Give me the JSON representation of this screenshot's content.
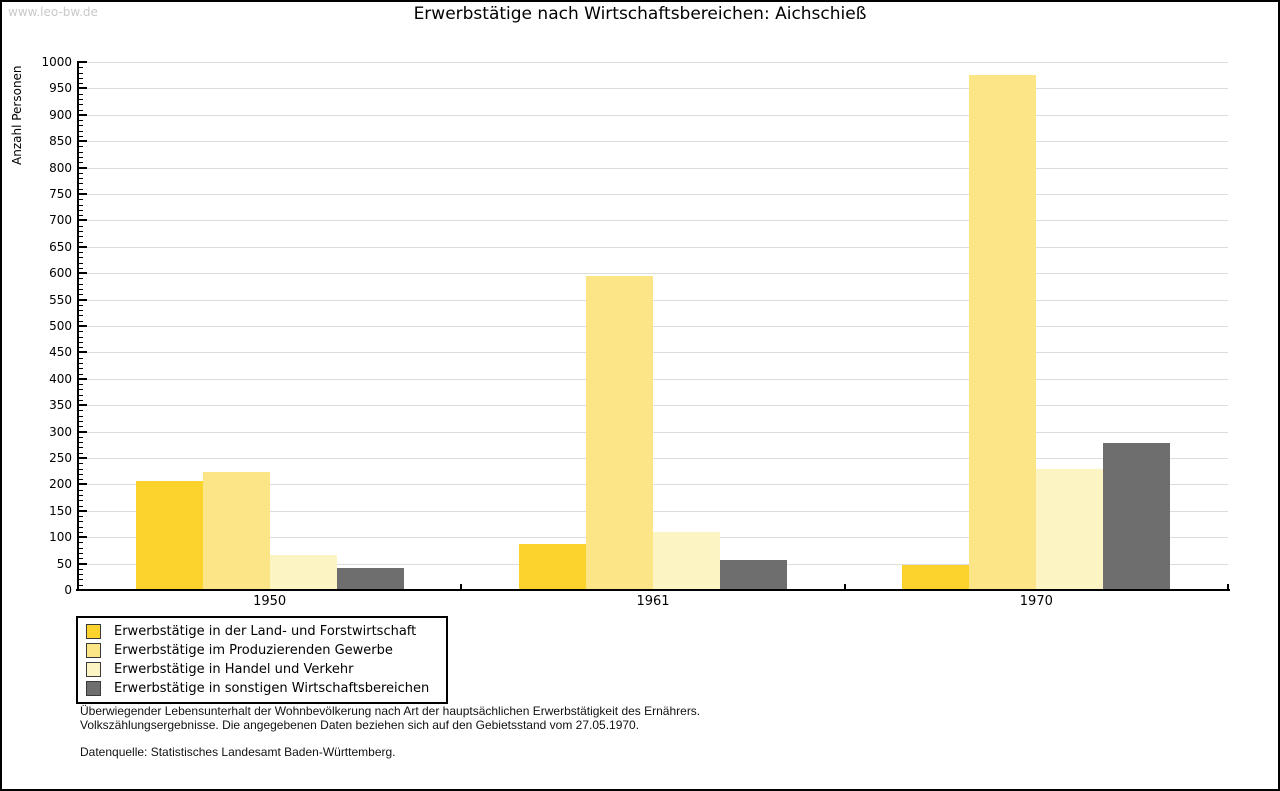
{
  "watermark": "www.leo-bw.de",
  "title": "Erwerbstätige nach Wirtschaftsbereichen: Aichschieß",
  "chart_data": {
    "type": "bar",
    "title": "Erwerbstätige nach Wirtschaftsbereichen: Aichschieß",
    "xlabel": "",
    "ylabel": "Anzahl Personen",
    "categories": [
      "1950",
      "1961",
      "1970"
    ],
    "series": [
      {
        "name": "Erwerbstätige in der Land- und Forstwirtschaft",
        "color": "#fcd32c",
        "values": [
          207,
          88,
          47
        ]
      },
      {
        "name": "Erwerbstätige im Produzierenden Gewerbe",
        "color": "#fbe586",
        "values": [
          223,
          595,
          976
        ]
      },
      {
        "name": "Erwerbstätige in Handel und Verkehr",
        "color": "#fcf4c2",
        "values": [
          67,
          110,
          229
        ]
      },
      {
        "name": "Erwerbstätige in sonstigen Wirtschaftsbereichen",
        "color": "#6e6e6e",
        "values": [
          42,
          56,
          279
        ]
      }
    ],
    "ylim": [
      0,
      1000
    ],
    "ytick_step": 50,
    "minor_tick_step": 10,
    "grid": true,
    "legend_position": "bottom-left"
  },
  "footer": {
    "line1": "Überwiegender Lebensunterhalt der Wohnbevölkerung nach Art der hauptsächlichen Erwerbstätigkeit des Ernährers.",
    "line2": "Volkszählungsergebnisse. Die angegebenen Daten beziehen sich auf den Gebietsstand vom 27.05.1970.",
    "source": "Datenquelle: Statistisches Landesamt Baden-Württemberg."
  },
  "colors": {
    "grid": "#dcdcdc",
    "axis": "#000000",
    "watermark": "#c9c9c9",
    "background": "#ffffff"
  }
}
